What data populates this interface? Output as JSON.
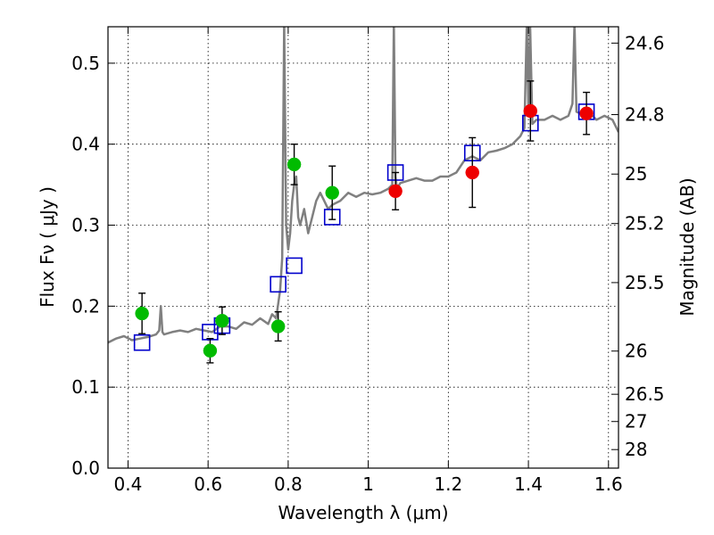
{
  "chart_data": {
    "type": "scatter",
    "title": "",
    "xlabel": "Wavelength  λ (μm)",
    "ylabel": "Flux  Fν  ( μJy )",
    "ylabel_right": "Magnitude (AB)",
    "xlim": [
      0.35,
      1.625
    ],
    "ylim": [
      0.0,
      0.545
    ],
    "grid": true,
    "x_ticks": [
      {
        "value": 0.4,
        "label": "0.4"
      },
      {
        "value": 0.6,
        "label": "0.6"
      },
      {
        "value": 0.8,
        "label": "0.8"
      },
      {
        "value": 1.0,
        "label": "1"
      },
      {
        "value": 1.2,
        "label": "1.2"
      },
      {
        "value": 1.4,
        "label": "1.4"
      },
      {
        "value": 1.6,
        "label": "1.6"
      }
    ],
    "y_ticks": [
      {
        "value": 0.0,
        "label": "0.0"
      },
      {
        "value": 0.1,
        "label": "0.1"
      },
      {
        "value": 0.2,
        "label": "0.2"
      },
      {
        "value": 0.3,
        "label": "0.3"
      },
      {
        "value": 0.4,
        "label": "0.4"
      },
      {
        "value": 0.5,
        "label": "0.5"
      }
    ],
    "magnitude_ticks": [
      "24.6",
      "24.8",
      "25",
      "25.2",
      "25.5",
      "26",
      "26.5",
      "27",
      "28"
    ],
    "series": [
      {
        "kind": "spectrum",
        "color": "#808080",
        "x": [
          0.35,
          0.37,
          0.39,
          0.41,
          0.43,
          0.45,
          0.47,
          0.478,
          0.482,
          0.486,
          0.49,
          0.51,
          0.53,
          0.55,
          0.57,
          0.59,
          0.61,
          0.63,
          0.65,
          0.67,
          0.69,
          0.71,
          0.73,
          0.75,
          0.76,
          0.77,
          0.78,
          0.785,
          0.79,
          0.795,
          0.8,
          0.805,
          0.81,
          0.815,
          0.82,
          0.825,
          0.83,
          0.84,
          0.85,
          0.86,
          0.87,
          0.88,
          0.89,
          0.9,
          0.91,
          0.93,
          0.95,
          0.97,
          0.99,
          1.01,
          1.03,
          1.05,
          1.06,
          1.064,
          1.068,
          1.072,
          1.08,
          1.1,
          1.12,
          1.14,
          1.16,
          1.18,
          1.2,
          1.22,
          1.24,
          1.26,
          1.28,
          1.3,
          1.32,
          1.34,
          1.36,
          1.38,
          1.39,
          1.396,
          1.4,
          1.404,
          1.41,
          1.42,
          1.44,
          1.46,
          1.48,
          1.5,
          1.51,
          1.515,
          1.52,
          1.53,
          1.55,
          1.57,
          1.59,
          1.61,
          1.625
        ],
        "y": [
          0.155,
          0.16,
          0.163,
          0.158,
          0.16,
          0.162,
          0.165,
          0.17,
          0.2,
          0.168,
          0.165,
          0.168,
          0.17,
          0.168,
          0.172,
          0.17,
          0.168,
          0.175,
          0.175,
          0.172,
          0.18,
          0.177,
          0.185,
          0.178,
          0.19,
          0.185,
          0.22,
          0.26,
          0.55,
          0.3,
          0.27,
          0.29,
          0.33,
          0.35,
          0.36,
          0.31,
          0.3,
          0.32,
          0.29,
          0.31,
          0.33,
          0.34,
          0.33,
          0.32,
          0.325,
          0.33,
          0.34,
          0.335,
          0.34,
          0.338,
          0.34,
          0.345,
          0.35,
          0.55,
          0.36,
          0.345,
          0.352,
          0.355,
          0.358,
          0.355,
          0.355,
          0.36,
          0.36,
          0.365,
          0.38,
          0.385,
          0.38,
          0.39,
          0.392,
          0.395,
          0.4,
          0.41,
          0.42,
          0.55,
          0.44,
          0.55,
          0.425,
          0.43,
          0.43,
          0.435,
          0.43,
          0.435,
          0.45,
          0.55,
          0.44,
          0.438,
          0.44,
          0.43,
          0.435,
          0.43,
          0.415
        ]
      },
      {
        "kind": "model_photometry",
        "marker": "open-square",
        "color": "#0000cc",
        "x": [
          0.435,
          0.605,
          0.635,
          0.775,
          0.815,
          0.91,
          1.068,
          1.26,
          1.405,
          1.545
        ],
        "y": [
          0.155,
          0.168,
          0.176,
          0.227,
          0.25,
          0.31,
          0.365,
          0.389,
          0.426,
          0.44
        ]
      },
      {
        "kind": "observed_optical",
        "marker": "filled-circle",
        "color": "#00bb00",
        "x": [
          0.435,
          0.605,
          0.635,
          0.775,
          0.815,
          0.91
        ],
        "y": [
          0.191,
          0.145,
          0.182,
          0.175,
          0.375,
          0.34
        ],
        "yerr": [
          0.025,
          0.015,
          0.017,
          0.018,
          0.025,
          0.033
        ]
      },
      {
        "kind": "observed_nir",
        "marker": "filled-circle",
        "color": "#ee0000",
        "x": [
          1.068,
          1.26,
          1.405,
          1.545
        ],
        "y": [
          0.342,
          0.365,
          0.441,
          0.438
        ],
        "yerr": [
          0.023,
          0.043,
          0.037,
          0.026
        ]
      }
    ]
  }
}
